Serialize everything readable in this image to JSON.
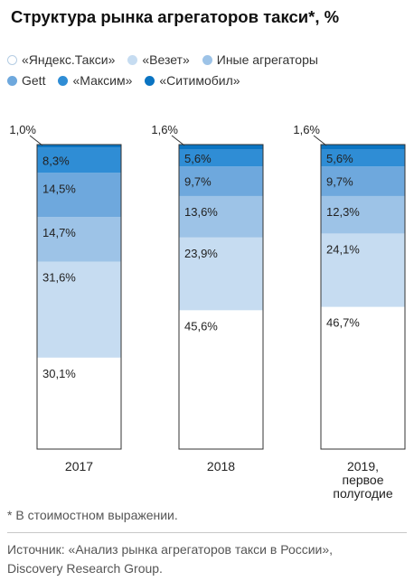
{
  "title": "Структура рынка агрегаторов такси*, %",
  "footnote": "* В стоимостном выражении.",
  "source_line1": "Источник: «Анализ рынка агрегаторов такси в России»,",
  "source_line2": "Discovery Research Group.",
  "chart_data": {
    "type": "bar",
    "stacked": true,
    "normalized_percent": true,
    "categories": [
      [
        "2017"
      ],
      [
        "2018"
      ],
      [
        "2019,",
        "первое",
        "полугодие"
      ]
    ],
    "series": [
      {
        "name": "«Яндекс.Такси»",
        "color": "#ffffff",
        "values": [
          30.1,
          45.6,
          46.7
        ],
        "labels": [
          "30,1%",
          "45,6%",
          "46,7%"
        ]
      },
      {
        "name": "«Везет»",
        "color": "#c6dcf1",
        "values": [
          31.6,
          23.9,
          24.1
        ],
        "labels": [
          "31,6%",
          "23,9%",
          "24,1%"
        ]
      },
      {
        "name": "Иные агрегаторы",
        "color": "#9dc3e7",
        "values": [
          14.7,
          13.6,
          12.3
        ],
        "labels": [
          "14,7%",
          "13,6%",
          "12,3%"
        ]
      },
      {
        "name": "Gett",
        "color": "#6ea8dd",
        "values": [
          14.5,
          9.7,
          9.7
        ],
        "labels": [
          "14,5%",
          "9,7%",
          "9,7%"
        ]
      },
      {
        "name": "«Максим»",
        "color": "#2f8dd5",
        "values": [
          8.3,
          5.6,
          5.6
        ],
        "labels": [
          "8,3%",
          "5,6%",
          "5,6%"
        ]
      },
      {
        "name": "«Ситимобил»",
        "color": "#0a74c2",
        "values": [
          1.0,
          1.6,
          1.6
        ],
        "labels": [
          "1,0%",
          "1,6%",
          "1,6%"
        ]
      }
    ],
    "legend_position": "top-left",
    "grid": false
  }
}
